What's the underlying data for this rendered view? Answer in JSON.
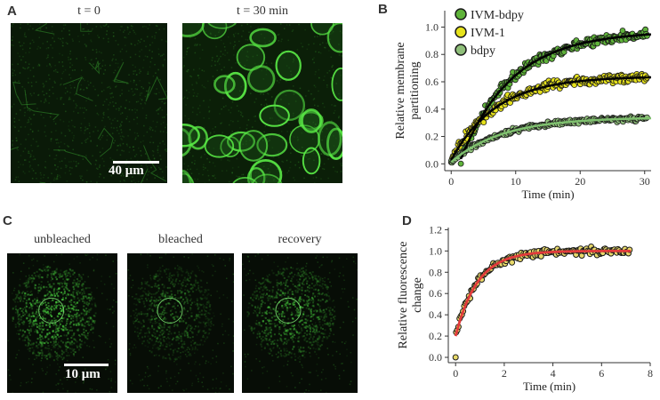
{
  "panelA": {
    "letter": "A",
    "captions": [
      "t = 0",
      "t = 30 min"
    ],
    "scalebar": "40 μm"
  },
  "panelC": {
    "letter": "C",
    "captions": [
      "unbleached",
      "bleached",
      "recovery"
    ],
    "scalebar": "10 μm"
  },
  "colors": {
    "ivm_bdpy": "#5fb33a",
    "ivm_1": "#e6e21c",
    "bdpy": "#8fbf7a",
    "fit_black": "#000000",
    "fit_green": "#7fc16f",
    "frap_fit": "#e23b3b",
    "frap_point": "#e8d96a"
  },
  "chart_data": [
    {
      "panel": "B",
      "type": "scatter",
      "xlabel": "Time (min)",
      "ylabel": "Relative membrane partitioning",
      "xlim": [
        -1,
        31
      ],
      "ylim": [
        -0.05,
        1.12
      ],
      "xticks": [
        0,
        10,
        20,
        30
      ],
      "yticks": [
        0.0,
        0.2,
        0.4,
        0.6,
        0.8,
        1.0
      ],
      "legend_position": "top-left",
      "series": [
        {
          "name": "IVM-bdpy",
          "color": "#5fb33a",
          "plateau": 0.97,
          "tau": 8,
          "start": 1.5,
          "fit_color": "#000000"
        },
        {
          "name": "IVM-1",
          "color": "#e6e21c",
          "plateau": 0.64,
          "tau": 7,
          "start": 0,
          "fit_color": "#000000"
        },
        {
          "name": "bdpy",
          "color": "#8fbf7a",
          "plateau": 0.34,
          "tau": 8,
          "start": 0,
          "fit_color": "#7fc16f"
        }
      ]
    },
    {
      "panel": "D",
      "type": "scatter",
      "xlabel": "Time (min)",
      "ylabel": "Relative fluorescence change",
      "xlim": [
        -0.3,
        8
      ],
      "ylim": [
        -0.05,
        1.22
      ],
      "xticks": [
        0,
        2,
        4,
        6,
        8
      ],
      "yticks": [
        0.0,
        0.2,
        0.4,
        0.6,
        0.8,
        1.0,
        1.2
      ],
      "series": [
        {
          "name": "",
          "color": "#e8d96a",
          "plateau": 1.0,
          "start_value": 0.2,
          "tau": 0.9,
          "duration": 7.2,
          "fit_color": "#e23b3b"
        }
      ]
    }
  ],
  "panelB_letter": "B",
  "panelD_letter": "D"
}
